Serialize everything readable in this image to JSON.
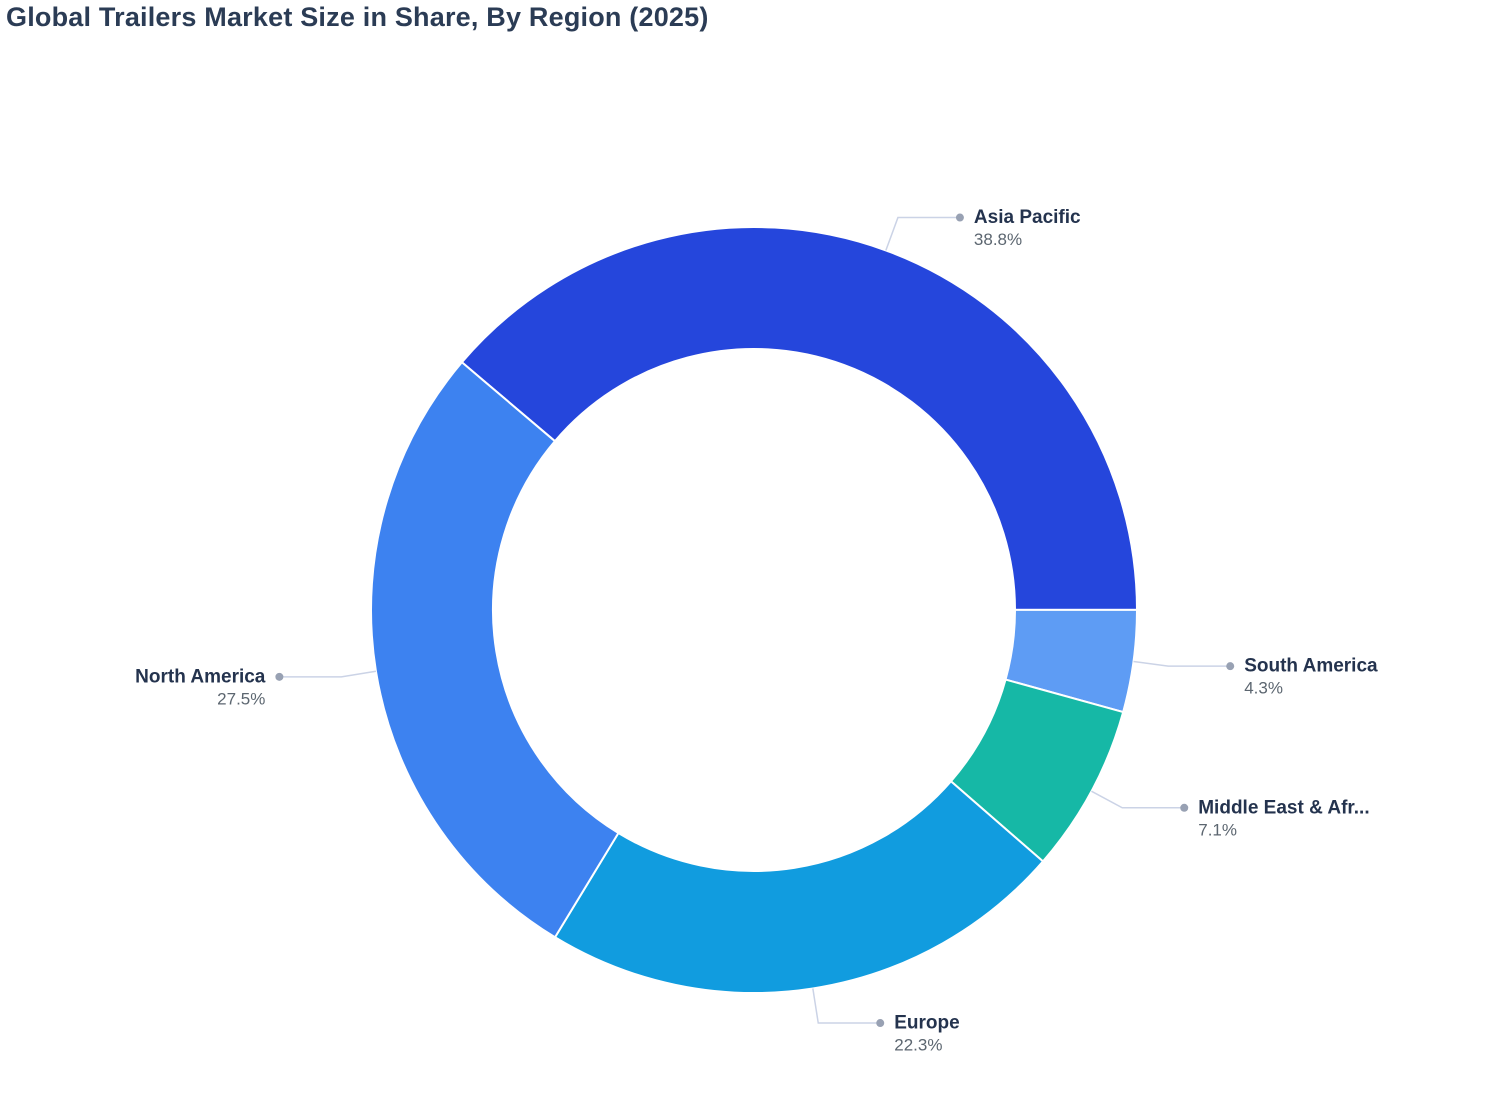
{
  "title": "Global Trailers Market Size in Share, By Region (2025)",
  "title_color": "#2B3C55",
  "chart_data": {
    "type": "pie",
    "subtype": "donut",
    "title": "Global Trailers Market Size in Share, By Region (2025)",
    "unit": "%",
    "direction": "clockwise",
    "start_angle_deg": 139.7,
    "legend": "off",
    "background": "#FFFFFF",
    "label_style": {
      "name_color": "#24334E",
      "value_color": "#5C6670",
      "leader_line_color": "#CBD3E6",
      "leader_dot_color": "#98A1B3"
    },
    "series": [
      {
        "id": "asia-pacific",
        "label": "Asia Pacific",
        "value": 38.8,
        "display_value": "38.8%",
        "color": "#2546DC"
      },
      {
        "id": "south-america",
        "label": "South America",
        "value": 4.3,
        "display_value": "4.3%",
        "color": "#5E9CF4"
      },
      {
        "id": "middle-east-africa",
        "label": "Middle East & Afr...",
        "value": 7.1,
        "display_value": "7.1%",
        "color": "#16B8A6"
      },
      {
        "id": "europe",
        "label": "Europe",
        "value": 22.3,
        "display_value": "22.3%",
        "color": "#119CDF"
      },
      {
        "id": "north-america",
        "label": "North America",
        "value": 27.5,
        "display_value": "27.5%",
        "color": "#3D82F0"
      }
    ]
  }
}
